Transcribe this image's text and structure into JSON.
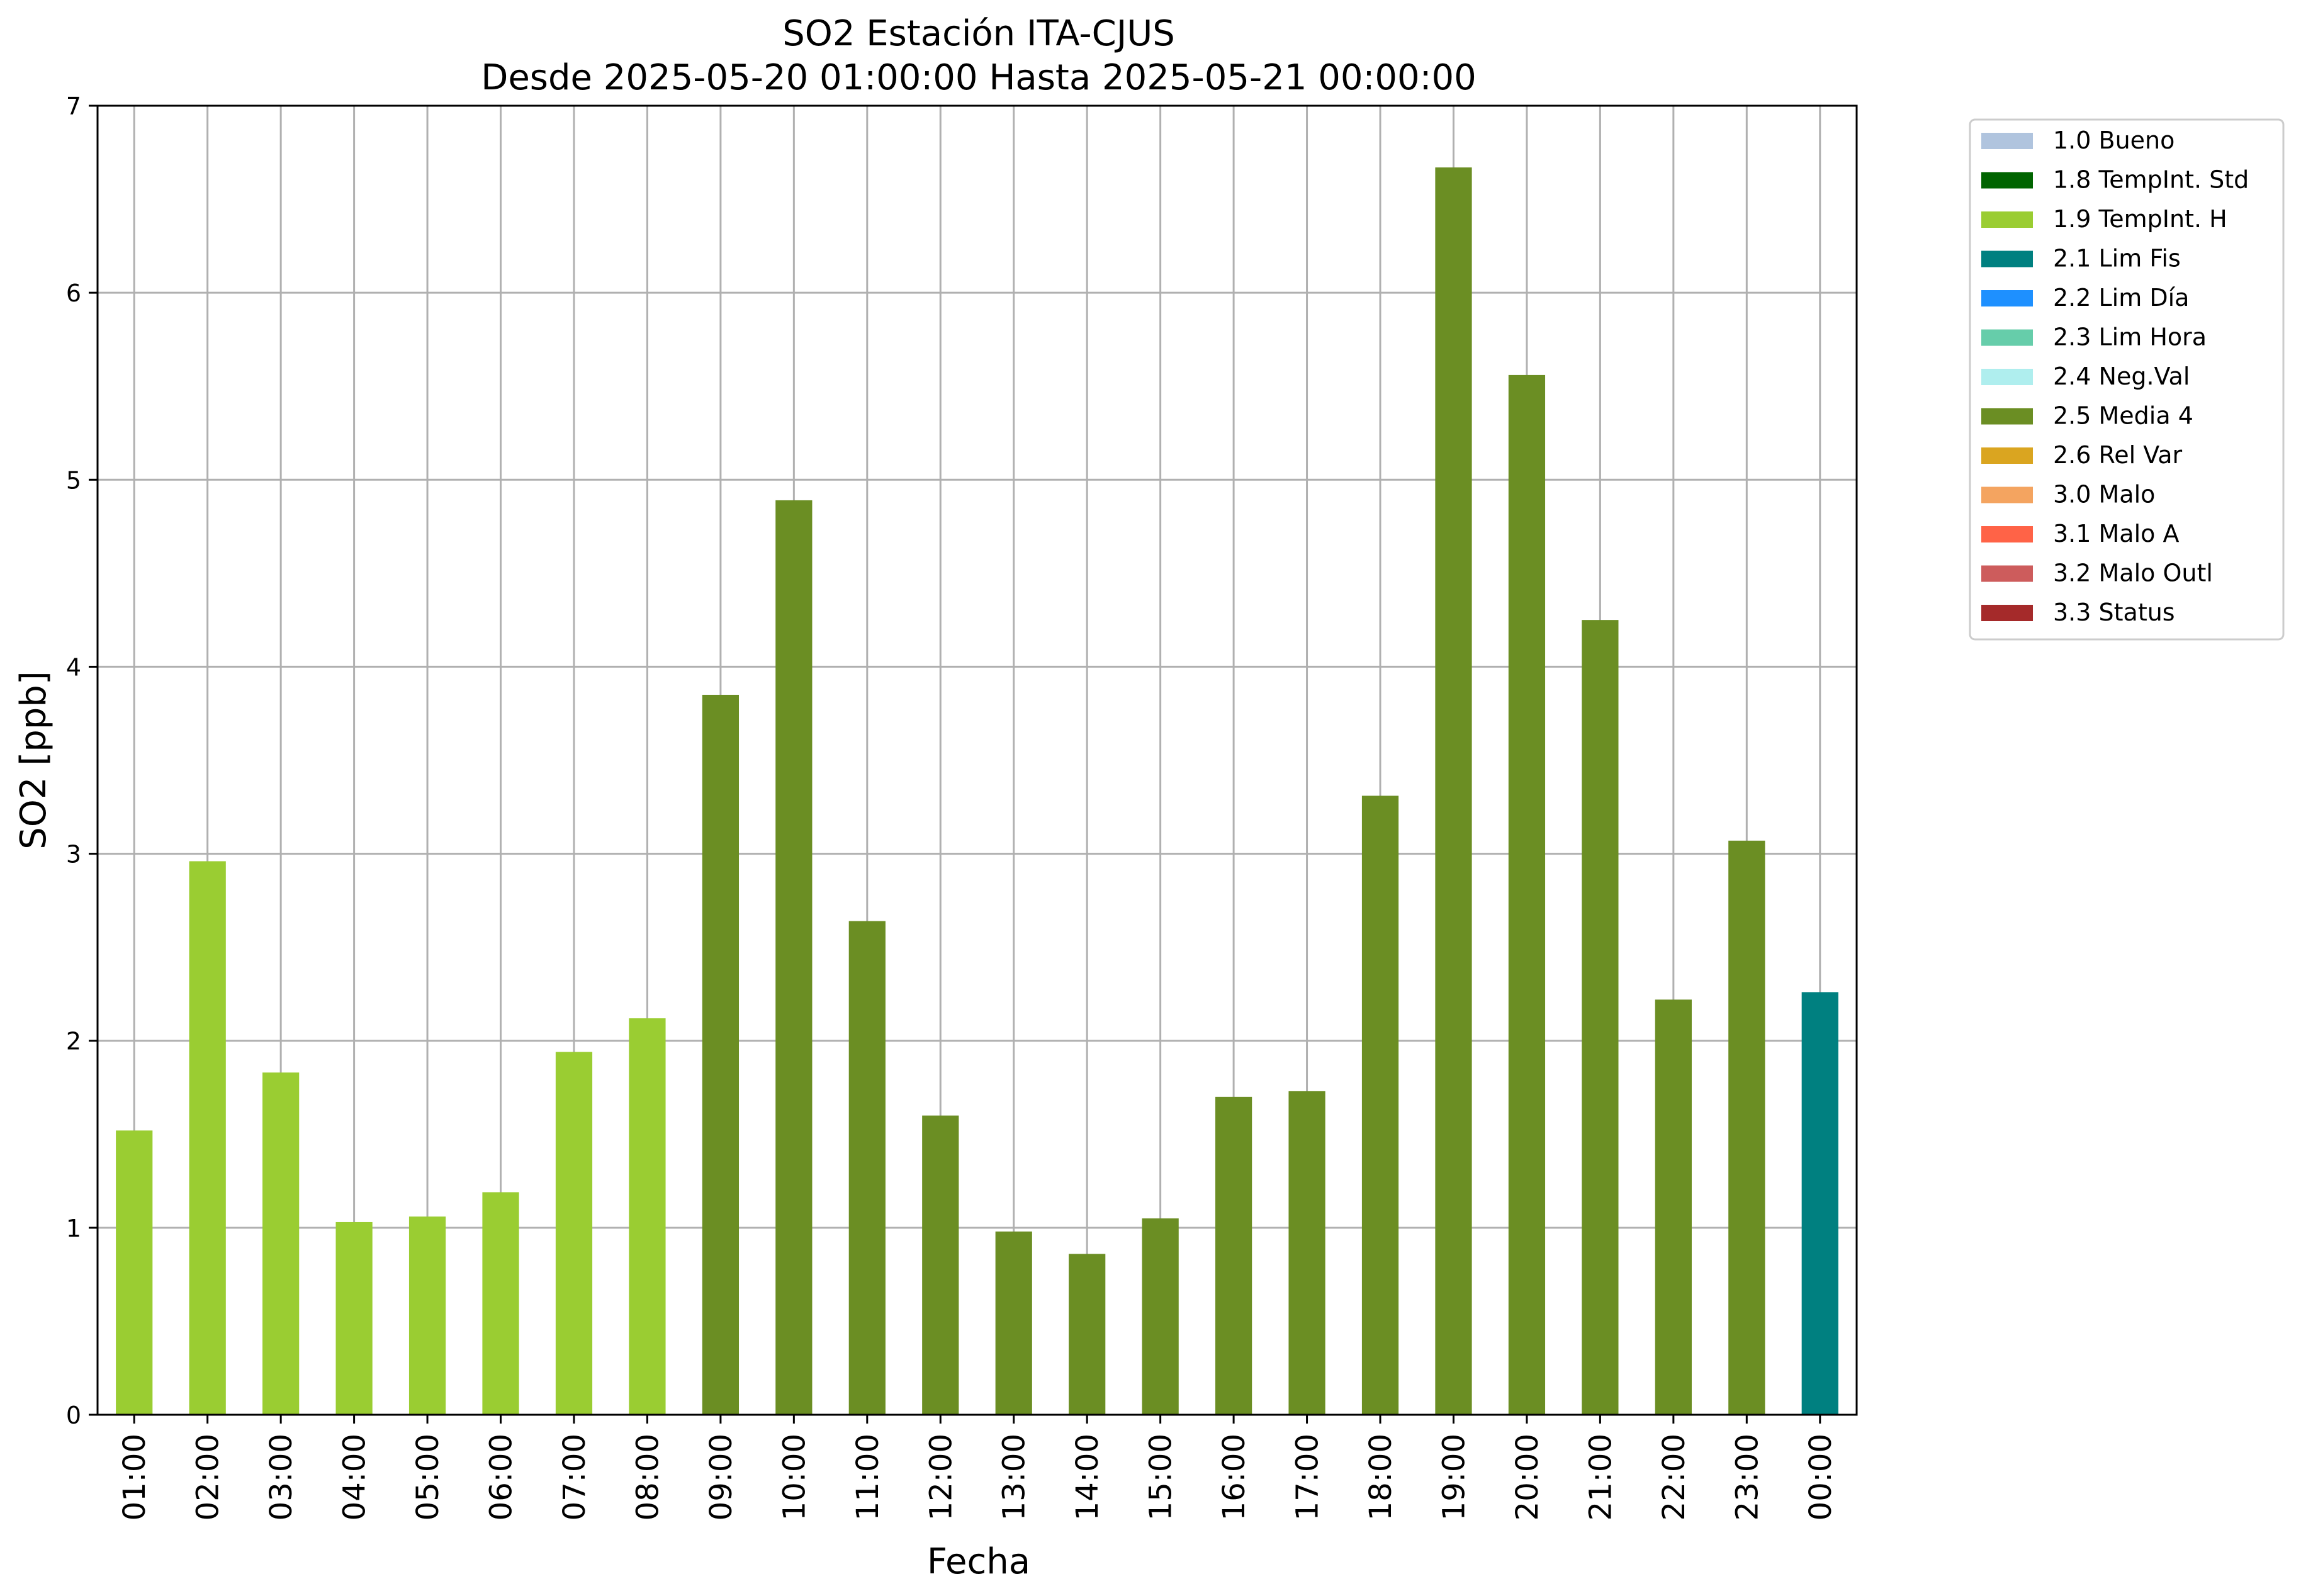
{
  "chart_data": {
    "type": "bar",
    "title": "SO2 Estación ITA-CJUS",
    "subtitle": "Desde 2025-05-20 01:00:00 Hasta 2025-05-21 00:00:00",
    "xlabel": "Fecha",
    "ylabel": "SO2 [ppb]",
    "ylim": [
      0,
      7
    ],
    "yticks": [
      "0",
      "1",
      "2",
      "3",
      "4",
      "5",
      "6",
      "7"
    ],
    "grid": true,
    "legend_position": "outside-top-right",
    "categories": [
      "01:00",
      "02:00",
      "03:00",
      "04:00",
      "05:00",
      "06:00",
      "07:00",
      "08:00",
      "09:00",
      "10:00",
      "11:00",
      "12:00",
      "13:00",
      "14:00",
      "15:00",
      "16:00",
      "17:00",
      "18:00",
      "19:00",
      "20:00",
      "21:00",
      "22:00",
      "23:00",
      "00:00"
    ],
    "values": [
      1.52,
      2.96,
      1.83,
      1.03,
      1.06,
      1.19,
      1.94,
      2.12,
      3.85,
      4.89,
      2.64,
      1.6,
      0.98,
      0.86,
      1.05,
      1.7,
      1.73,
      3.31,
      6.67,
      5.56,
      4.25,
      2.22,
      3.07,
      2.26
    ],
    "flags": [
      "1.9",
      "1.9",
      "1.9",
      "1.9",
      "1.9",
      "1.9",
      "1.9",
      "1.9",
      "2.5",
      "2.5",
      "2.5",
      "2.5",
      "2.5",
      "2.5",
      "2.5",
      "2.5",
      "2.5",
      "2.5",
      "2.5",
      "2.5",
      "2.5",
      "2.5",
      "2.5",
      "2.1"
    ],
    "legend": [
      {
        "code": "1.0",
        "label": "1.0 Bueno",
        "color": "#b0c4de"
      },
      {
        "code": "1.8",
        "label": "1.8 TempInt. Std",
        "color": "#006400"
      },
      {
        "code": "1.9",
        "label": "1.9 TempInt. H",
        "color": "#9acd32"
      },
      {
        "code": "2.1",
        "label": "2.1 Lim Fis",
        "color": "#008080"
      },
      {
        "code": "2.2",
        "label": "2.2 Lim Día",
        "color": "#1e90ff"
      },
      {
        "code": "2.3",
        "label": "2.3 Lim Hora",
        "color": "#66cdaa"
      },
      {
        "code": "2.4",
        "label": "2.4 Neg.Val",
        "color": "#afeeee"
      },
      {
        "code": "2.5",
        "label": "2.5 Media 4",
        "color": "#6b8e23"
      },
      {
        "code": "2.6",
        "label": "2.6 Rel Var",
        "color": "#daa520"
      },
      {
        "code": "3.0",
        "label": "3.0 Malo",
        "color": "#f4a460"
      },
      {
        "code": "3.1",
        "label": "3.1 Malo A",
        "color": "#ff6347"
      },
      {
        "code": "3.2",
        "label": "3.2 Malo Outl",
        "color": "#cd5c5c"
      },
      {
        "code": "3.3",
        "label": "3.3 Status",
        "color": "#a52a2a"
      }
    ],
    "colors": {
      "grid": "#b0b0b0",
      "axes": "#000000"
    }
  }
}
